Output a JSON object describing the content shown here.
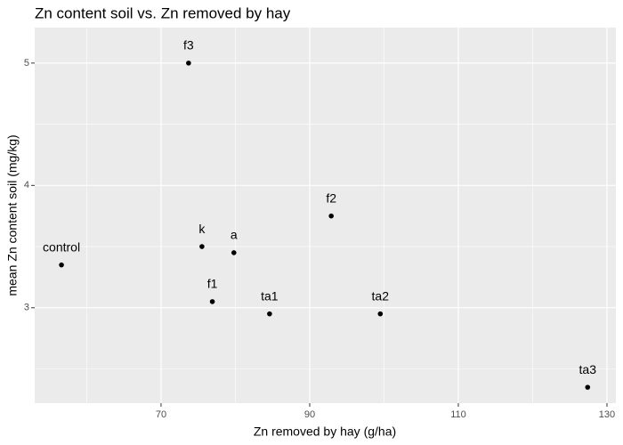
{
  "chart_data": {
    "type": "scatter",
    "title": "Zn content soil vs. Zn removed by hay",
    "x_label": "Zn removed by hay (g/ha)",
    "y_label": "mean Zn content soil (mg/kg)",
    "labels": [
      "control",
      "f3",
      "k",
      "a",
      "f1",
      "ta1",
      "f2",
      "ta2",
      "ta3"
    ],
    "x": [
      56.6,
      73.7,
      75.5,
      79.8,
      76.9,
      84.6,
      92.9,
      99.5,
      127.4
    ],
    "y": [
      3.35,
      5.0,
      3.5,
      3.45,
      3.05,
      2.95,
      3.75,
      2.95,
      2.35
    ],
    "color": "#000000",
    "xlim": [
      53.0,
      131.2
    ],
    "ylim": [
      2.22,
      5.29
    ],
    "xticks": [
      70,
      90,
      110,
      130
    ],
    "yticks": [
      3,
      4,
      5
    ],
    "grid": true
  }
}
